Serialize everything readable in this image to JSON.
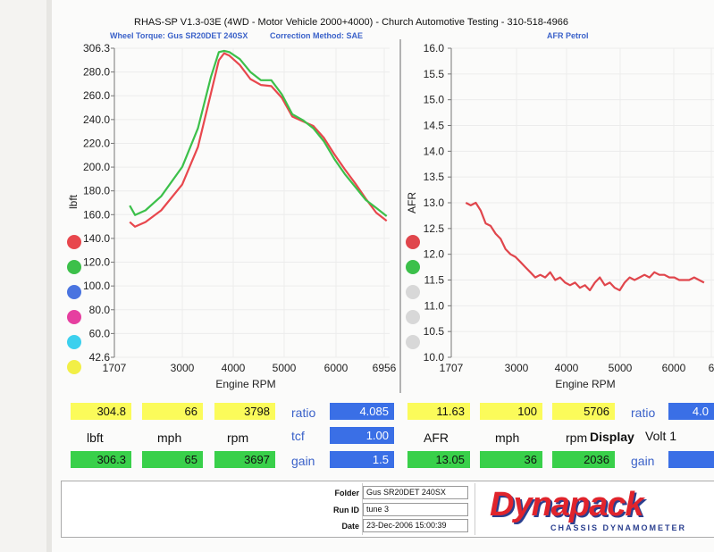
{
  "header": {
    "title": "RHAS-SP V1.3-03E  (4WD - Motor Vehicle 2000+4000) - Church Automotive Testing - 310-518-4966",
    "left_subtitle": "Wheel Torque: Gus SR20DET 240SX",
    "correction": "Correction Method: SAE",
    "right_subtitle": "AFR Petrol"
  },
  "chart_data": [
    {
      "type": "line",
      "ylabel": "lbft",
      "xlabel": "Engine RPM",
      "xlim": [
        1707,
        6956
      ],
      "ylim": [
        42.6,
        306.3
      ],
      "x_ticks": [
        "1707",
        "3000",
        "4000",
        "5000",
        "6000",
        "6956"
      ],
      "y_ticks": [
        "306.3",
        "280.0",
        "260.0",
        "240.0",
        "220.0",
        "200.0",
        "180.0",
        "160.0",
        "140.0",
        "120.0",
        "100.0",
        "80.0",
        "60.0",
        "42.6"
      ],
      "series": [
        {
          "color": "#e8474d",
          "x": [
            2000,
            2100,
            2300,
            2600,
            3000,
            3300,
            3550,
            3700,
            3800,
            3900,
            4100,
            4300,
            4500,
            4700,
            4900,
            5100,
            5300,
            5500,
            5700,
            5900,
            6100,
            6300,
            6500,
            6700,
            6900
          ],
          "y": [
            158,
            154,
            158,
            168,
            190,
            222,
            268,
            296,
            302,
            300,
            292,
            280,
            275,
            274,
            264,
            248,
            244,
            240,
            230,
            216,
            203,
            191,
            178,
            166,
            159
          ]
        },
        {
          "color": "#3cc04a",
          "x": [
            2000,
            2100,
            2300,
            2600,
            3000,
            3300,
            3550,
            3700,
            3800,
            3900,
            4100,
            4300,
            4500,
            4700,
            4900,
            5100,
            5300,
            5500,
            5700,
            5900,
            6100,
            6300,
            6500,
            6700,
            6900
          ],
          "y": [
            172,
            164,
            168,
            180,
            205,
            238,
            282,
            303,
            304,
            303,
            297,
            286,
            279,
            279,
            267,
            250,
            245,
            238,
            227,
            212,
            199,
            188,
            177,
            170,
            163
          ]
        }
      ]
    },
    {
      "type": "line",
      "ylabel": "AFR",
      "xlabel": "Engine RPM",
      "xlim": [
        1707,
        7000
      ],
      "ylim": [
        10.0,
        16.0
      ],
      "x_ticks": [
        "1707",
        "3000",
        "4000",
        "5000",
        "6000",
        "6"
      ],
      "y_ticks": [
        "16.0",
        "15.5",
        "15.0",
        "14.5",
        "14.0",
        "13.5",
        "13.0",
        "12.5",
        "12.0",
        "11.5",
        "11.0",
        "10.5",
        "10.0"
      ],
      "series": [
        {
          "color": "#e0464c",
          "x": [
            2000,
            2100,
            2200,
            2300,
            2400,
            2500,
            2600,
            2700,
            2800,
            2900,
            3000,
            3100,
            3200,
            3300,
            3400,
            3500,
            3600,
            3700,
            3800,
            3900,
            4000,
            4100,
            4200,
            4300,
            4400,
            4500,
            4600,
            4700,
            4800,
            4900,
            5000,
            5100,
            5200,
            5300,
            5400,
            5500,
            5600,
            5700,
            5800,
            5900,
            6000,
            6100,
            6200,
            6300,
            6400,
            6500,
            6600,
            6700,
            6800
          ],
          "y": [
            13.0,
            12.95,
            13.0,
            12.85,
            12.6,
            12.55,
            12.4,
            12.3,
            12.1,
            12.0,
            11.95,
            11.85,
            11.75,
            11.65,
            11.55,
            11.6,
            11.55,
            11.65,
            11.5,
            11.55,
            11.45,
            11.4,
            11.45,
            11.35,
            11.4,
            11.3,
            11.45,
            11.55,
            11.4,
            11.45,
            11.35,
            11.3,
            11.45,
            11.55,
            11.5,
            11.55,
            11.6,
            11.55,
            11.65,
            11.6,
            11.6,
            11.55,
            11.55,
            11.5,
            11.5,
            11.5,
            11.55,
            11.5,
            11.45
          ]
        }
      ]
    }
  ],
  "left_panel": {
    "legend_colors": [
      "#e8474d",
      "#3cc04a",
      "#4a74e0",
      "#e63fa0",
      "#3cd0ee",
      "#f2ef46"
    ],
    "row1": {
      "v1": "304.8",
      "v2": "66",
      "v3": "3798",
      "ratio_label": "ratio",
      "ratio": "4.085"
    },
    "row2": {
      "u1": "lbft",
      "u2": "mph",
      "u3": "rpm",
      "tcf_label": "tcf",
      "tcf": "1.00"
    },
    "row3": {
      "v1": "306.3",
      "v2": "65",
      "v3": "3697",
      "gain_label": "gain",
      "gain": "1.5"
    }
  },
  "right_panel": {
    "legend_colors": [
      "#e0464c",
      "#3cc04a",
      "#d8d8d8",
      "#d8d8d8",
      "#d8d8d8"
    ],
    "row1": {
      "v1": "11.63",
      "v2": "100",
      "v3": "5706",
      "ratio_label": "ratio",
      "ratio": "4.0"
    },
    "row2": {
      "u1": "AFR",
      "u2": "mph",
      "u3": "rpm",
      "display_label": "Display",
      "display_value": "Volt 1"
    },
    "row3": {
      "v1": "13.05",
      "v2": "36",
      "v3": "2036",
      "gain_label": "gain"
    }
  },
  "footer": {
    "folder_label": "Folder",
    "folder": "Gus SR20DET 240SX",
    "runid_label": "Run ID",
    "runid": "tune 3",
    "date_label": "Date",
    "date": "23-Dec-2006  15:00:39",
    "logo": "Dynapack",
    "logo_sub": "CHASSIS DYNAMOMETER"
  }
}
